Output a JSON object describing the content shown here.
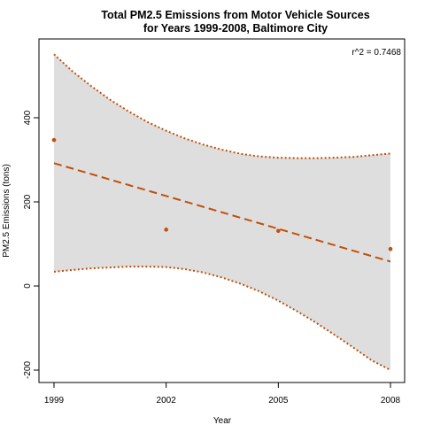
{
  "chart_data": {
    "type": "scatter",
    "title": "Total PM2.5 Emissions from Motor Vehicle Sources",
    "subtitle": "for Years 1999-2008, Baltimore City",
    "xlabel": "Year",
    "ylabel": "PM2.5 Emissions (tons)",
    "xlim": [
      1999,
      2008
    ],
    "ylim": [
      -210,
      560
    ],
    "xticks": [
      1999,
      2002,
      2005,
      2008
    ],
    "yticks": [
      -200,
      0,
      200,
      400
    ],
    "grid": false,
    "points": [
      {
        "x": 1999,
        "y": 347
      },
      {
        "x": 2002,
        "y": 134
      },
      {
        "x": 2005,
        "y": 131
      },
      {
        "x": 2008,
        "y": 88
      }
    ],
    "fit_line": [
      {
        "x": 1999,
        "y": 292
      },
      {
        "x": 2008,
        "y": 58
      }
    ],
    "confidence_band": {
      "upper": [
        {
          "x": 1999,
          "y": 551
        },
        {
          "x": 1999.5,
          "y": 510
        },
        {
          "x": 2000,
          "y": 475
        },
        {
          "x": 2000.5,
          "y": 443
        },
        {
          "x": 2001,
          "y": 415
        },
        {
          "x": 2001.5,
          "y": 390
        },
        {
          "x": 2002,
          "y": 369
        },
        {
          "x": 2002.5,
          "y": 351
        },
        {
          "x": 2003,
          "y": 336
        },
        {
          "x": 2003.5,
          "y": 324
        },
        {
          "x": 2004,
          "y": 314
        },
        {
          "x": 2004.5,
          "y": 308
        },
        {
          "x": 2005,
          "y": 305
        },
        {
          "x": 2005.5,
          "y": 304
        },
        {
          "x": 2006,
          "y": 304
        },
        {
          "x": 2006.5,
          "y": 305
        },
        {
          "x": 2007,
          "y": 307
        },
        {
          "x": 2007.5,
          "y": 311
        },
        {
          "x": 2008,
          "y": 315
        }
      ],
      "lower": [
        {
          "x": 1999,
          "y": 34
        },
        {
          "x": 1999.5,
          "y": 38
        },
        {
          "x": 2000,
          "y": 42
        },
        {
          "x": 2000.5,
          "y": 44
        },
        {
          "x": 2001,
          "y": 46
        },
        {
          "x": 2001.5,
          "y": 46
        },
        {
          "x": 2002,
          "y": 45
        },
        {
          "x": 2002.5,
          "y": 40
        },
        {
          "x": 2003,
          "y": 32
        },
        {
          "x": 2003.5,
          "y": 20
        },
        {
          "x": 2004,
          "y": 5
        },
        {
          "x": 2004.5,
          "y": -13
        },
        {
          "x": 2005,
          "y": -35
        },
        {
          "x": 2005.5,
          "y": -60
        },
        {
          "x": 2006,
          "y": -87
        },
        {
          "x": 2006.5,
          "y": -116
        },
        {
          "x": 2007,
          "y": -146
        },
        {
          "x": 2007.5,
          "y": -177
        },
        {
          "x": 2008,
          "y": -200
        }
      ]
    },
    "annotation": "r^2 = 0.7468",
    "annotation_position": "top-right",
    "colors": {
      "series": "#c0500a",
      "band_fill": "#dedede",
      "axis": "#000000"
    }
  }
}
